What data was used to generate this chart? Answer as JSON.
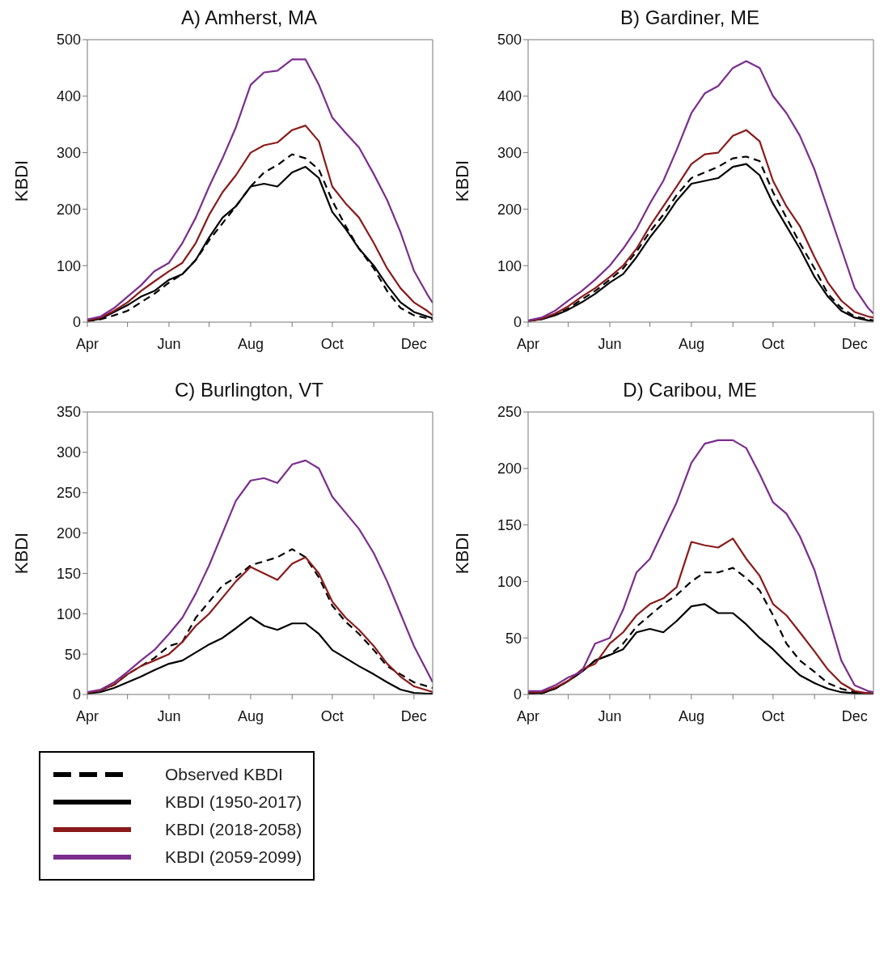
{
  "chart_data": [
    {
      "type": "line",
      "title": "A) Amherst, MA",
      "ylabel": "KBDI",
      "legend": false,
      "x": [
        "--04-01",
        "--04-11",
        "--04-21",
        "--05-01",
        "--05-11",
        "--05-21",
        "--06-01",
        "--06-11",
        "--06-21",
        "--07-01",
        "--07-11",
        "--07-21",
        "--08-01",
        "--08-11",
        "--08-21",
        "--09-01",
        "--09-11",
        "--09-21",
        "--10-01",
        "--10-11",
        "--10-21",
        "--11-01",
        "--11-11",
        "--11-21",
        "--12-01",
        "--12-11",
        "--12-15"
      ],
      "xlim": [
        "--04-01",
        "--12-15"
      ],
      "xticks": [
        {
          "value": "--04-01",
          "label": "Apr"
        },
        {
          "value": "--05-01",
          "label": null
        },
        {
          "value": "--06-01",
          "label": "Jun"
        },
        {
          "value": "--07-01",
          "label": null
        },
        {
          "value": "--08-01",
          "label": "Aug"
        },
        {
          "value": "--09-01",
          "label": null
        },
        {
          "value": "--10-01",
          "label": "Oct"
        },
        {
          "value": "--11-01",
          "label": null
        },
        {
          "value": "--12-01",
          "label": "Dec"
        }
      ],
      "ylim": [
        0,
        500
      ],
      "yticks": [
        0,
        100,
        200,
        300,
        400,
        500
      ],
      "series": [
        {
          "color": "#000000",
          "line_style": "dashed",
          "values": [
            2,
            5,
            12,
            20,
            35,
            50,
            70,
            85,
            110,
            145,
            175,
            205,
            240,
            265,
            278,
            297,
            290,
            270,
            215,
            170,
            130,
            95,
            55,
            25,
            12,
            7,
            5
          ]
        },
        {
          "color": "#000000",
          "line_style": "solid",
          "values": [
            2,
            6,
            18,
            30,
            45,
            55,
            75,
            85,
            110,
            150,
            185,
            205,
            240,
            245,
            240,
            265,
            275,
            255,
            195,
            165,
            130,
            100,
            65,
            35,
            18,
            10,
            7
          ]
        },
        {
          "color": "#8b1a1a",
          "line_style": "solid",
          "values": [
            3,
            8,
            20,
            35,
            55,
            72,
            90,
            105,
            140,
            190,
            230,
            260,
            300,
            313,
            318,
            340,
            348,
            320,
            240,
            210,
            185,
            140,
            95,
            60,
            35,
            20,
            12
          ]
        },
        {
          "color": "#7b2d8e",
          "line_style": "solid",
          "values": [
            5,
            10,
            25,
            45,
            65,
            90,
            105,
            140,
            185,
            240,
            290,
            345,
            420,
            442,
            445,
            465,
            465,
            420,
            362,
            335,
            309,
            262,
            216,
            159,
            91,
            49,
            34
          ]
        }
      ]
    },
    {
      "type": "line",
      "title": "B) Gardiner, ME",
      "ylabel": "KBDI",
      "legend": false,
      "x": [
        "--04-01",
        "--04-11",
        "--04-21",
        "--05-01",
        "--05-11",
        "--05-21",
        "--06-01",
        "--06-11",
        "--06-21",
        "--07-01",
        "--07-11",
        "--07-21",
        "--08-01",
        "--08-11",
        "--08-21",
        "--09-01",
        "--09-11",
        "--09-21",
        "--10-01",
        "--10-11",
        "--10-21",
        "--11-01",
        "--11-11",
        "--11-21",
        "--12-01",
        "--12-11",
        "--12-15"
      ],
      "xlim": [
        "--04-01",
        "--12-15"
      ],
      "xticks": [
        {
          "value": "--04-01",
          "label": "Apr"
        },
        {
          "value": "--05-01",
          "label": null
        },
        {
          "value": "--06-01",
          "label": "Jun"
        },
        {
          "value": "--07-01",
          "label": null
        },
        {
          "value": "--08-01",
          "label": "Aug"
        },
        {
          "value": "--09-01",
          "label": null
        },
        {
          "value": "--10-01",
          "label": "Oct"
        },
        {
          "value": "--11-01",
          "label": null
        },
        {
          "value": "--12-01",
          "label": "Dec"
        }
      ],
      "ylim": [
        0,
        500
      ],
      "yticks": [
        0,
        100,
        200,
        300,
        400,
        500
      ],
      "series": [
        {
          "color": "#000000",
          "line_style": "dashed",
          "values": [
            2,
            5,
            13,
            24,
            40,
            55,
            75,
            95,
            125,
            160,
            190,
            225,
            255,
            265,
            275,
            290,
            293,
            285,
            230,
            185,
            140,
            95,
            50,
            25,
            10,
            5,
            3
          ]
        },
        {
          "color": "#000000",
          "line_style": "solid",
          "values": [
            2,
            5,
            12,
            22,
            35,
            50,
            70,
            85,
            115,
            150,
            180,
            215,
            245,
            250,
            255,
            275,
            280,
            260,
            210,
            170,
            130,
            80,
            45,
            20,
            8,
            3,
            2
          ]
        },
        {
          "color": "#8b1a1a",
          "line_style": "solid",
          "values": [
            2,
            6,
            15,
            28,
            45,
            60,
            80,
            100,
            130,
            170,
            205,
            240,
            280,
            297,
            300,
            330,
            340,
            320,
            250,
            205,
            170,
            115,
            70,
            38,
            18,
            10,
            8
          ]
        },
        {
          "color": "#7b2d8e",
          "line_style": "solid",
          "values": [
            3,
            8,
            20,
            38,
            55,
            75,
            100,
            130,
            165,
            210,
            250,
            305,
            370,
            405,
            418,
            450,
            462,
            450,
            400,
            370,
            330,
            270,
            200,
            130,
            60,
            25,
            15
          ]
        }
      ]
    },
    {
      "type": "line",
      "title": "C) Burlington, VT",
      "ylabel": "KBDI",
      "legend": "bottom",
      "x": [
        "--04-01",
        "--04-11",
        "--04-21",
        "--05-01",
        "--05-11",
        "--05-21",
        "--06-01",
        "--06-11",
        "--06-21",
        "--07-01",
        "--07-11",
        "--07-21",
        "--08-01",
        "--08-11",
        "--08-21",
        "--09-01",
        "--09-11",
        "--09-21",
        "--10-01",
        "--10-11",
        "--10-21",
        "--11-01",
        "--11-11",
        "--11-21",
        "--12-01",
        "--12-11",
        "--12-15"
      ],
      "xlim": [
        "--04-01",
        "--12-15"
      ],
      "xticks": [
        {
          "value": "--04-01",
          "label": "Apr"
        },
        {
          "value": "--05-01",
          "label": null
        },
        {
          "value": "--06-01",
          "label": "Jun"
        },
        {
          "value": "--07-01",
          "label": null
        },
        {
          "value": "--08-01",
          "label": "Aug"
        },
        {
          "value": "--09-01",
          "label": null
        },
        {
          "value": "--10-01",
          "label": "Oct"
        },
        {
          "value": "--11-01",
          "label": null
        },
        {
          "value": "--12-01",
          "label": "Dec"
        }
      ],
      "ylim": [
        0,
        350
      ],
      "yticks": [
        0,
        50,
        100,
        150,
        200,
        250,
        300,
        350
      ],
      "series": [
        {
          "name": "Observed KBDI",
          "color": "#000000",
          "line_style": "dashed",
          "values": [
            2,
            5,
            12,
            25,
            35,
            45,
            60,
            65,
            95,
            115,
            135,
            145,
            160,
            165,
            170,
            180,
            170,
            145,
            110,
            90,
            75,
            55,
            35,
            25,
            15,
            10,
            8
          ]
        },
        {
          "name": "KBDI (1950-2017)",
          "color": "#000000",
          "line_style": "solid",
          "values": [
            1,
            3,
            8,
            15,
            22,
            30,
            38,
            42,
            52,
            62,
            70,
            82,
            96,
            85,
            80,
            88,
            88,
            75,
            55,
            45,
            35,
            25,
            15,
            6,
            2,
            1,
            1
          ]
        },
        {
          "name": "KBDI (2018-2058)",
          "color": "#8b1a1a",
          "line_style": "solid",
          "values": [
            2,
            5,
            12,
            25,
            35,
            42,
            50,
            65,
            85,
            100,
            120,
            140,
            158,
            150,
            142,
            162,
            170,
            150,
            115,
            95,
            80,
            60,
            38,
            22,
            10,
            5,
            3
          ]
        },
        {
          "name": "KBDI (2059-2099)",
          "color": "#7b2d8e",
          "line_style": "solid",
          "values": [
            3,
            6,
            15,
            28,
            42,
            55,
            75,
            95,
            125,
            160,
            200,
            240,
            265,
            268,
            262,
            285,
            290,
            280,
            245,
            225,
            205,
            175,
            140,
            100,
            60,
            28,
            15
          ]
        }
      ]
    },
    {
      "type": "line",
      "title": "D) Caribou, ME",
      "ylabel": "KBDI",
      "legend": false,
      "x": [
        "--04-01",
        "--04-11",
        "--04-21",
        "--05-01",
        "--05-11",
        "--05-21",
        "--06-01",
        "--06-11",
        "--06-21",
        "--07-01",
        "--07-11",
        "--07-21",
        "--08-01",
        "--08-11",
        "--08-21",
        "--09-01",
        "--09-11",
        "--09-21",
        "--10-01",
        "--10-11",
        "--10-21",
        "--11-01",
        "--11-11",
        "--11-21",
        "--12-01",
        "--12-11",
        "--12-15"
      ],
      "xlim": [
        "--04-01",
        "--12-15"
      ],
      "xticks": [
        {
          "value": "--04-01",
          "label": "Apr"
        },
        {
          "value": "--05-01",
          "label": null
        },
        {
          "value": "--06-01",
          "label": "Jun"
        },
        {
          "value": "--07-01",
          "label": null
        },
        {
          "value": "--08-01",
          "label": "Aug"
        },
        {
          "value": "--09-01",
          "label": null
        },
        {
          "value": "--10-01",
          "label": "Oct"
        },
        {
          "value": "--11-01",
          "label": null
        },
        {
          "value": "--12-01",
          "label": "Dec"
        }
      ],
      "ylim": [
        0,
        250
      ],
      "yticks": [
        0,
        50,
        100,
        150,
        200,
        250
      ],
      "series": [
        {
          "color": "#000000",
          "line_style": "dashed",
          "values": [
            1,
            1,
            5,
            12,
            20,
            30,
            35,
            45,
            60,
            70,
            80,
            88,
            100,
            108,
            108,
            112,
            103,
            92,
            70,
            45,
            30,
            20,
            10,
            5,
            2,
            1,
            1
          ]
        },
        {
          "color": "#000000",
          "line_style": "solid",
          "values": [
            1,
            1,
            5,
            12,
            20,
            30,
            35,
            40,
            55,
            58,
            55,
            65,
            78,
            80,
            72,
            72,
            62,
            50,
            40,
            28,
            17,
            10,
            5,
            2,
            1,
            1,
            1
          ]
        },
        {
          "color": "#8b1a1a",
          "line_style": "solid",
          "values": [
            2,
            2,
            6,
            12,
            22,
            27,
            45,
            55,
            70,
            80,
            85,
            95,
            135,
            132,
            130,
            138,
            120,
            105,
            80,
            70,
            55,
            38,
            22,
            10,
            3,
            1,
            1
          ]
        },
        {
          "color": "#7b2d8e",
          "line_style": "solid",
          "values": [
            3,
            3,
            8,
            15,
            20,
            45,
            50,
            75,
            108,
            120,
            145,
            170,
            205,
            222,
            225,
            225,
            218,
            195,
            170,
            160,
            140,
            110,
            70,
            30,
            8,
            3,
            2
          ]
        }
      ]
    }
  ]
}
